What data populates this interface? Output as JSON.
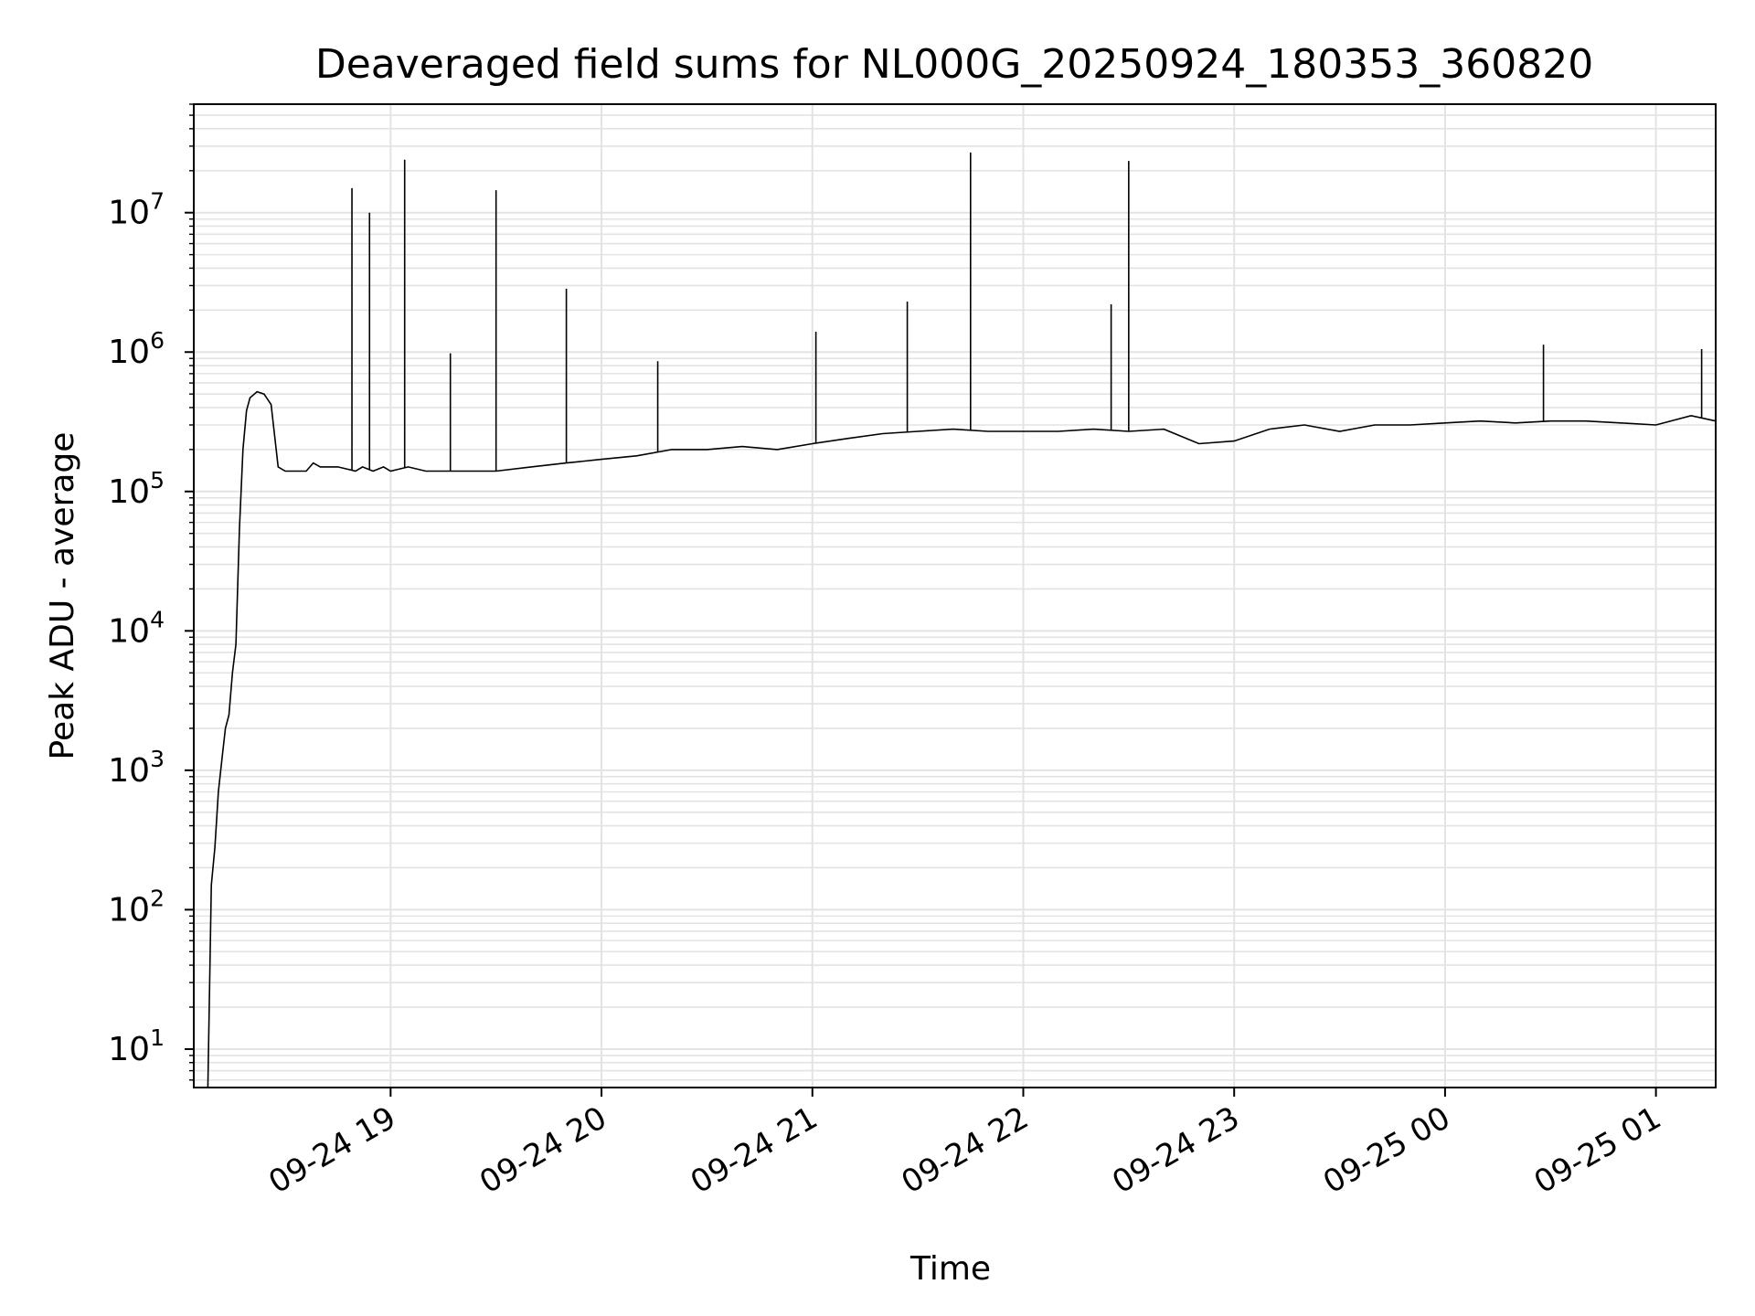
{
  "chart_data": {
    "type": "line",
    "title": "Deaveraged field sums for NL000G_20250924_180353_360820",
    "xlabel": "Time",
    "ylabel": "Peak ADU - average",
    "yscale": "log",
    "ylim": [
      5.3,
      60000000
    ],
    "xlim": [
      "2025-09-24 18:04",
      "2025-09-25 01:17"
    ],
    "grid": true,
    "legend": "none",
    "line_color": "#000000",
    "grid_color": "#e3e3e3",
    "x_ticks": [
      "09-24 19",
      "09-24 20",
      "09-24 21",
      "09-24 22",
      "09-24 23",
      "09-25 00",
      "09-25 01"
    ],
    "x_tick_times": [
      "2025-09-24 19:00",
      "2025-09-24 20:00",
      "2025-09-24 21:00",
      "2025-09-24 22:00",
      "2025-09-24 23:00",
      "2025-09-25 00:00",
      "2025-09-25 01:00"
    ],
    "y_ticks": [
      {
        "value": 10,
        "base": "10",
        "exp": "1"
      },
      {
        "value": 100,
        "base": "10",
        "exp": "2"
      },
      {
        "value": 1000,
        "base": "10",
        "exp": "3"
      },
      {
        "value": 10000,
        "base": "10",
        "exp": "4"
      },
      {
        "value": 100000,
        "base": "10",
        "exp": "5"
      },
      {
        "value": 1000000,
        "base": "10",
        "exp": "6"
      },
      {
        "value": 10000000,
        "base": "10",
        "exp": "7"
      }
    ],
    "series": [
      {
        "x": [
          "2025-09-24 18:08",
          "2025-09-24 18:09",
          "2025-09-24 18:10",
          "2025-09-24 18:11",
          "2025-09-24 18:12",
          "2025-09-24 18:13",
          "2025-09-24 18:14",
          "2025-09-24 18:15",
          "2025-09-24 18:16",
          "2025-09-24 18:17",
          "2025-09-24 18:18",
          "2025-09-24 18:19",
          "2025-09-24 18:20",
          "2025-09-24 18:22",
          "2025-09-24 18:24",
          "2025-09-24 18:26",
          "2025-09-24 18:28",
          "2025-09-24 18:30",
          "2025-09-24 18:32",
          "2025-09-24 18:34",
          "2025-09-24 18:36",
          "2025-09-24 18:38",
          "2025-09-24 18:40",
          "2025-09-24 18:45",
          "2025-09-24 18:50",
          "2025-09-24 18:52",
          "2025-09-24 18:55",
          "2025-09-24 18:58",
          "2025-09-24 19:00",
          "2025-09-24 19:05",
          "2025-09-24 19:10",
          "2025-09-24 19:20",
          "2025-09-24 19:30",
          "2025-09-24 19:40",
          "2025-09-24 19:50",
          "2025-09-24 20:00",
          "2025-09-24 20:10",
          "2025-09-24 20:20",
          "2025-09-24 20:30",
          "2025-09-24 20:40",
          "2025-09-24 20:50",
          "2025-09-24 21:00",
          "2025-09-24 21:10",
          "2025-09-24 21:20",
          "2025-09-24 21:30",
          "2025-09-24 21:40",
          "2025-09-24 21:50",
          "2025-09-24 22:00",
          "2025-09-24 22:10",
          "2025-09-24 22:20",
          "2025-09-24 22:30",
          "2025-09-24 22:40",
          "2025-09-24 22:50",
          "2025-09-24 23:00",
          "2025-09-24 23:10",
          "2025-09-24 23:20",
          "2025-09-24 23:30",
          "2025-09-24 23:40",
          "2025-09-24 23:50",
          "2025-09-25 00:00",
          "2025-09-25 00:10",
          "2025-09-25 00:20",
          "2025-09-25 00:30",
          "2025-09-25 00:40",
          "2025-09-25 00:50",
          "2025-09-25 01:00",
          "2025-09-25 01:10",
          "2025-09-25 01:17"
        ],
        "y": [
          5,
          150,
          280,
          700,
          1200,
          2000,
          2500,
          5000,
          8000,
          55000,
          200000,
          380000,
          470000,
          520000,
          500000,
          420000,
          150000,
          140000,
          140000,
          140000,
          140000,
          160000,
          150000,
          150000,
          140000,
          150000,
          140000,
          150000,
          140000,
          150000,
          140000,
          140000,
          140000,
          150000,
          160000,
          170000,
          180000,
          200000,
          200000,
          210000,
          200000,
          220000,
          240000,
          260000,
          270000,
          280000,
          270000,
          270000,
          270000,
          280000,
          270000,
          280000,
          220000,
          230000,
          280000,
          300000,
          270000,
          300000,
          300000,
          310000,
          320000,
          310000,
          320000,
          320000,
          310000,
          300000,
          350000,
          320000
        ]
      }
    ],
    "spikes": [
      {
        "x": "2025-09-24 18:49",
        "y": 15000000
      },
      {
        "x": "2025-09-24 18:54",
        "y": 10000000
      },
      {
        "x": "2025-09-24 19:04",
        "y": 24000000
      },
      {
        "x": "2025-09-24 19:17",
        "y": 980000
      },
      {
        "x": "2025-09-24 19:30",
        "y": 14500000
      },
      {
        "x": "2025-09-24 19:50",
        "y": 2850000
      },
      {
        "x": "2025-09-24 20:16",
        "y": 860000
      },
      {
        "x": "2025-09-24 21:01",
        "y": 1400000
      },
      {
        "x": "2025-09-24 21:27",
        "y": 2300000
      },
      {
        "x": "2025-09-24 21:45",
        "y": 27000000
      },
      {
        "x": "2025-09-24 22:25",
        "y": 2200000
      },
      {
        "x": "2025-09-24 22:30",
        "y": 23500000
      },
      {
        "x": "2025-09-25 00:28",
        "y": 1130000
      },
      {
        "x": "2025-09-25 01:13",
        "y": 1050000
      }
    ]
  }
}
